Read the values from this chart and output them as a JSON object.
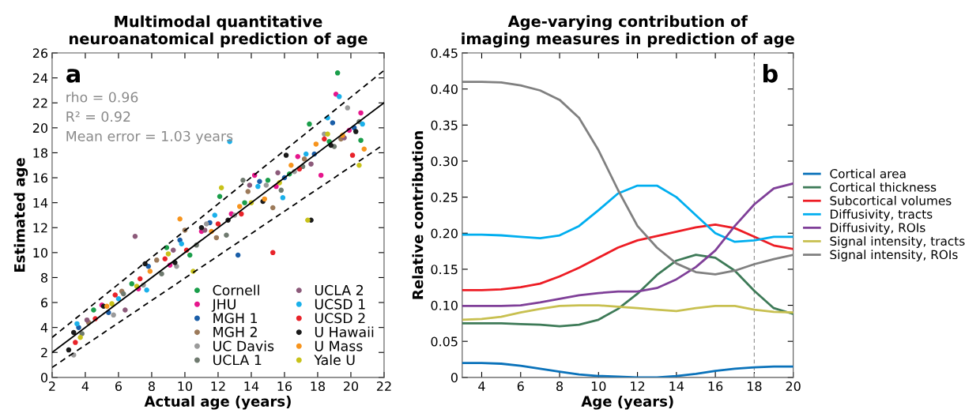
{
  "chart_data": [
    {
      "type": "scatter",
      "title": "Multimodal quantitative\nneuroanatomical prediction of age",
      "xlabel": "Actual age (years)",
      "ylabel": "Estimated age",
      "xlim": [
        2,
        22
      ],
      "xticks": [
        2,
        4,
        6,
        8,
        10,
        12,
        14,
        16,
        18,
        20,
        22
      ],
      "ylim": [
        0,
        26
      ],
      "yticks": [
        0,
        2,
        4,
        6,
        8,
        10,
        12,
        14,
        16,
        18,
        20,
        22,
        24,
        26
      ],
      "grid": false,
      "legend": "bottom right",
      "marker": "circle",
      "annotations": [
        "a",
        "rho = 0.96",
        "R² = 0.92",
        "Mean error = 1.03 years"
      ],
      "series": [
        {
          "name": "Cornell",
          "color": "#1a9e4a",
          "x": [
            4.5,
            6.8,
            8.9,
            10.3,
            12.1,
            13.6,
            15.0,
            16.3,
            17.5,
            18.7,
            19.2,
            20.6
          ],
          "values": [
            5.4,
            7.5,
            10.4,
            9.8,
            14.5,
            14.0,
            15.8,
            16.3,
            20.3,
            18.9,
            24.4,
            19.0
          ]
        },
        {
          "name": "JHU",
          "color": "#e6168c",
          "x": [
            5.0,
            7.2,
            9.1,
            11.0,
            12.8,
            14.2,
            15.5,
            16.8,
            18.2,
            19.1,
            19.9,
            20.6
          ],
          "values": [
            5.8,
            7.1,
            9.0,
            11.7,
            13.1,
            16.2,
            15.3,
            17.7,
            16.2,
            22.7,
            19.8,
            21.2
          ]
        },
        {
          "name": "MGH 1",
          "color": "#1a5ea8",
          "x": [
            3.6,
            5.4,
            7.8,
            9.7,
            11.5,
            13.2,
            14.5,
            16.0,
            17.8,
            18.9,
            20.2
          ],
          "values": [
            4.0,
            5.2,
            8.9,
            11.0,
            12.4,
            9.8,
            15.7,
            16.0,
            17.9,
            20.4,
            20.0
          ]
        },
        {
          "name": "MGH 2",
          "color": "#9c7a5a",
          "x": [
            4.2,
            6.2,
            8.3,
            10.0,
            11.9,
            13.8,
            15.3,
            17.2,
            19.4
          ],
          "values": [
            4.4,
            6.9,
            9.4,
            11.8,
            11.2,
            14.9,
            13.6,
            17.5,
            19.1
          ]
        },
        {
          "name": "UC Davis",
          "color": "#9a9a9a",
          "x": [
            3.3,
            5.7,
            7.5,
            9.5,
            11.3,
            13.0,
            14.9,
            16.6,
            18.4,
            19.8
          ],
          "values": [
            1.8,
            5.0,
            7.4,
            8.9,
            12.3,
            13.0,
            15.4,
            16.5,
            19.5,
            21.6
          ]
        },
        {
          "name": "UCLA 1",
          "color": "#6f7a6f",
          "x": [
            3.8,
            6.3,
            8.6,
            10.7,
            12.5,
            13.5,
            15.8,
            17.1,
            19.0,
            20.5
          ],
          "values": [
            3.5,
            6.7,
            8.3,
            10.6,
            11.4,
            15.8,
            15.0,
            16.9,
            18.5,
            20.5
          ]
        },
        {
          "name": "UCLA 2",
          "color": "#8c5a7a",
          "x": [
            4.1,
            6.4,
            7.0,
            9.3,
            11.2,
            13.9,
            15.6,
            17.6,
            19.6
          ],
          "values": [
            4.6,
            5.4,
            11.3,
            10.2,
            11.8,
            15.4,
            16.4,
            17.1,
            19.2
          ]
        },
        {
          "name": "UCSD 1",
          "color": "#1ab0ea",
          "x": [
            3.5,
            6.0,
            7.7,
            9.8,
            11.8,
            12.7,
            14.4,
            15.9,
            17.3,
            18.6,
            19.3,
            20.7
          ],
          "values": [
            4.3,
            6.3,
            7.0,
            10.7,
            13.0,
            18.9,
            15.3,
            14.4,
            17.9,
            20.8,
            22.5,
            20.3
          ]
        },
        {
          "name": "UCSD 2",
          "color": "#e8232a",
          "x": [
            3.4,
            4.6,
            5.8,
            7.3,
            8.8,
            10.1,
            12.0,
            13.4,
            15.3,
            16.9,
            18.4,
            20.1
          ],
          "values": [
            2.8,
            4.7,
            6.6,
            7.9,
            9.5,
            10.2,
            12.3,
            13.1,
            10.0,
            16.7,
            19.1,
            17.8
          ]
        },
        {
          "name": "U Hawaii",
          "color": "#1a1a1a",
          "x": [
            3.0,
            3.3,
            5.1,
            7.6,
            9.4,
            11.0,
            12.6,
            14.7,
            16.1,
            17.6,
            18.8,
            20.3
          ],
          "values": [
            2.2,
            3.6,
            5.7,
            9.1,
            9.2,
            12.0,
            12.6,
            14.1,
            17.8,
            12.6,
            18.6,
            19.7
          ]
        },
        {
          "name": "U Mass",
          "color": "#f7941d",
          "x": [
            5.3,
            7.9,
            9.7,
            11.6,
            13.3,
            14.8,
            16.4,
            17.9,
            19.5,
            20.8
          ],
          "values": [
            5.7,
            8.5,
            12.7,
            11.7,
            13.7,
            14.3,
            17.0,
            18.7,
            19.4,
            18.3
          ]
        },
        {
          "name": "Yale U",
          "color": "#c8c21a",
          "x": [
            3.7,
            5.6,
            7.1,
            9.0,
            10.5,
            12.2,
            14.0,
            15.7,
            17.4,
            18.6,
            20.5
          ],
          "values": [
            3.2,
            5.9,
            7.3,
            9.9,
            8.5,
            15.2,
            14.0,
            15.6,
            12.6,
            19.5,
            17.0
          ]
        },
        {
          "type": "line",
          "color": "#000000",
          "line_style": "solid",
          "marker": "none",
          "x": [
            2,
            22
          ],
          "values": [
            2,
            22
          ]
        },
        {
          "type": "line",
          "color": "#000000",
          "line_style": "dashed",
          "marker": "none",
          "x": [
            2,
            22
          ],
          "values": [
            3.2,
            24.6
          ]
        },
        {
          "type": "line",
          "color": "#000000",
          "line_style": "dashed",
          "marker": "none",
          "x": [
            2,
            21.8
          ],
          "values": [
            0.8,
            18.5
          ]
        }
      ]
    },
    {
      "type": "line",
      "title": "Age-varying contribution of\nimaging measures in prediction of age",
      "xlabel": "Age (years)",
      "ylabel": "Relative contribution",
      "xlim": [
        3,
        20
      ],
      "xticks": [
        4,
        6,
        8,
        10,
        12,
        14,
        16,
        18,
        20
      ],
      "ylim": [
        0,
        0.45
      ],
      "yticks": [
        0,
        0.05,
        {
          "value": 0.1,
          "label": "0.10"
        },
        0.15,
        {
          "value": 0.2,
          "label": "0.20"
        },
        0.25,
        {
          "value": 0.3,
          "label": "0.30"
        },
        0.35,
        {
          "value": 0.4,
          "label": "0.40"
        },
        0.45
      ],
      "grid": false,
      "legend": "right",
      "marker": "none",
      "line_style": "solid",
      "annotations": [
        "b"
      ],
      "ref_lines": [
        {
          "axis": "x",
          "value": 18,
          "color": "#999999",
          "line_style": "dashed"
        }
      ],
      "x": [
        3,
        4,
        5,
        6,
        7,
        8,
        9,
        10,
        11,
        12,
        13,
        14,
        15,
        16,
        17,
        18,
        19,
        20
      ],
      "series": [
        {
          "name": "Cortical area",
          "color": "#0a72ba",
          "values": [
            0.02,
            0.02,
            0.019,
            0.016,
            0.012,
            0.008,
            0.004,
            0.002,
            0.001,
            0.0,
            0.0,
            0.002,
            0.005,
            0.009,
            0.012,
            0.014,
            0.015,
            0.015
          ]
        },
        {
          "name": "Cortical thickness",
          "color": "#3d7a57",
          "values": [
            0.075,
            0.075,
            0.075,
            0.074,
            0.073,
            0.071,
            0.073,
            0.08,
            0.095,
            0.116,
            0.142,
            0.162,
            0.17,
            0.166,
            0.148,
            0.12,
            0.096,
            0.088
          ]
        },
        {
          "name": "Subcortical volumes",
          "color": "#ed1c24",
          "values": [
            0.121,
            0.121,
            0.122,
            0.125,
            0.13,
            0.14,
            0.152,
            0.166,
            0.18,
            0.19,
            0.196,
            0.202,
            0.208,
            0.212,
            0.207,
            0.195,
            0.183,
            0.178
          ]
        },
        {
          "name": "Diffusivity, tracts",
          "color": "#00aeef",
          "values": [
            0.198,
            0.198,
            0.197,
            0.195,
            0.193,
            0.197,
            0.21,
            0.232,
            0.255,
            0.266,
            0.266,
            0.25,
            0.225,
            0.2,
            0.188,
            0.19,
            0.195,
            0.195
          ]
        },
        {
          "name": "Diffusivity, ROIs",
          "color": "#7f3f98",
          "values": [
            0.099,
            0.099,
            0.099,
            0.1,
            0.104,
            0.109,
            0.114,
            0.117,
            0.119,
            0.119,
            0.124,
            0.136,
            0.153,
            0.176,
            0.21,
            0.24,
            0.262,
            0.269
          ]
        },
        {
          "name": "Signal intensity, tracts",
          "color": "#c8c050",
          "values": [
            0.08,
            0.081,
            0.084,
            0.09,
            0.095,
            0.099,
            0.1,
            0.1,
            0.098,
            0.096,
            0.094,
            0.092,
            0.096,
            0.099,
            0.099,
            0.094,
            0.091,
            0.09
          ]
        },
        {
          "name": "Signal intensity, ROIs",
          "color": "#808080",
          "values": [
            0.41,
            0.41,
            0.409,
            0.405,
            0.398,
            0.385,
            0.36,
            0.315,
            0.26,
            0.21,
            0.18,
            0.158,
            0.146,
            0.143,
            0.148,
            0.157,
            0.164,
            0.17
          ]
        }
      ]
    }
  ]
}
